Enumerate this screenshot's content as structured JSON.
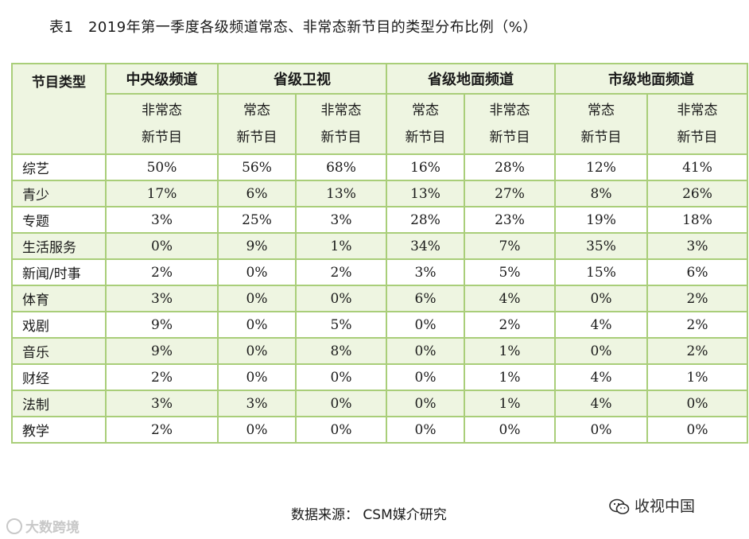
{
  "title": "表1　2019年第一季度各级频道常态、非常态新节目的类型分布比例（%）",
  "header": {
    "category_label": "节目类型",
    "groups": [
      "中央级频道",
      "省级卫视",
      "省级地面频道",
      "市级地面频道"
    ],
    "sub_columns": [
      [
        "非常态",
        "新节目"
      ],
      [
        "常态",
        "新节目"
      ],
      [
        "非常态",
        "新节目"
      ],
      [
        "常态",
        "新节目"
      ],
      [
        "非常态",
        "新节目"
      ],
      [
        "常态",
        "新节目"
      ],
      [
        "非常态",
        "新节目"
      ]
    ]
  },
  "rows": [
    {
      "category": "综艺",
      "values": [
        "50%",
        "56%",
        "68%",
        "16%",
        "28%",
        "12%",
        "41%"
      ]
    },
    {
      "category": "青少",
      "values": [
        "17%",
        "6%",
        "13%",
        "13%",
        "27%",
        "8%",
        "26%"
      ]
    },
    {
      "category": "专题",
      "values": [
        "3%",
        "25%",
        "3%",
        "28%",
        "23%",
        "19%",
        "18%"
      ]
    },
    {
      "category": "生活服务",
      "values": [
        "0%",
        "9%",
        "1%",
        "34%",
        "7%",
        "35%",
        "3%"
      ]
    },
    {
      "category": "新闻/时事",
      "values": [
        "2%",
        "0%",
        "2%",
        "3%",
        "5%",
        "15%",
        "6%"
      ]
    },
    {
      "category": "体育",
      "values": [
        "3%",
        "0%",
        "0%",
        "6%",
        "4%",
        "0%",
        "2%"
      ]
    },
    {
      "category": "戏剧",
      "values": [
        "9%",
        "0%",
        "5%",
        "0%",
        "2%",
        "4%",
        "2%"
      ]
    },
    {
      "category": "音乐",
      "values": [
        "9%",
        "0%",
        "8%",
        "0%",
        "1%",
        "0%",
        "2%"
      ]
    },
    {
      "category": "财经",
      "values": [
        "2%",
        "0%",
        "0%",
        "0%",
        "1%",
        "4%",
        "1%"
      ]
    },
    {
      "category": "法制",
      "values": [
        "3%",
        "3%",
        "0%",
        "0%",
        "1%",
        "4%",
        "0%"
      ]
    },
    {
      "category": "教学",
      "values": [
        "2%",
        "0%",
        "0%",
        "0%",
        "0%",
        "0%",
        "0%"
      ]
    }
  ],
  "source": "数据来源： CSM媒介研究",
  "watermark_left": "大数跨境",
  "watermark_right": "收视中国",
  "colors": {
    "border": "#a9ce79",
    "row_shade": "#eef5e1"
  }
}
